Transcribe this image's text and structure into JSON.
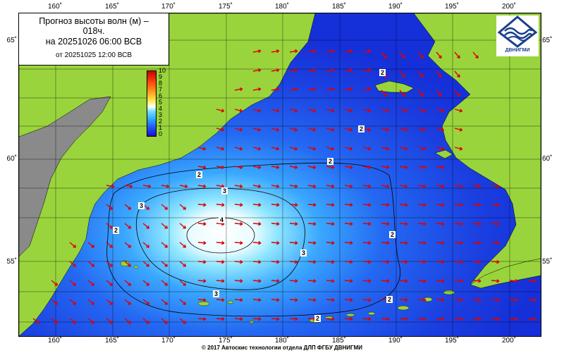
{
  "title": {
    "line1": "Прогноз высоты волн (м) –",
    "line1b": "018ч.",
    "line2": "на 20251026 06:00 ВСВ",
    "line3": "от 20251025 12:00 ВСВ"
  },
  "logo": {
    "name": "dvnigmi-logo",
    "text": "ДВНИГМИ"
  },
  "footer": "© 2017 Автоскис технологии отдела ДЛП ФГБУ ДВНИГМИ",
  "longitude_labels": [
    "160˚",
    "165˚",
    "170˚",
    "175˚",
    "180˚",
    "185˚",
    "190˚",
    "195˚",
    "200˚"
  ],
  "latitude_labels": [
    "65˚",
    "60˚",
    "55˚"
  ],
  "colorbar": {
    "ticks": [
      "10",
      "9",
      "8",
      "7",
      "6",
      "5",
      "4",
      "3",
      "2",
      "1",
      "0"
    ]
  },
  "contour_labels": [
    "2",
    "2",
    "2",
    "2",
    "2",
    "3",
    "3",
    "3",
    "3",
    "4",
    "2",
    "2",
    "2"
  ],
  "colors": {
    "land": "#9ad43c",
    "land_gray": "#888888",
    "sea_deep": "#1530d8",
    "sea_mid": "#2c7cff",
    "sea_light": "#70d8ff",
    "peak": "#ffffff",
    "arrow": "#e00000"
  }
}
